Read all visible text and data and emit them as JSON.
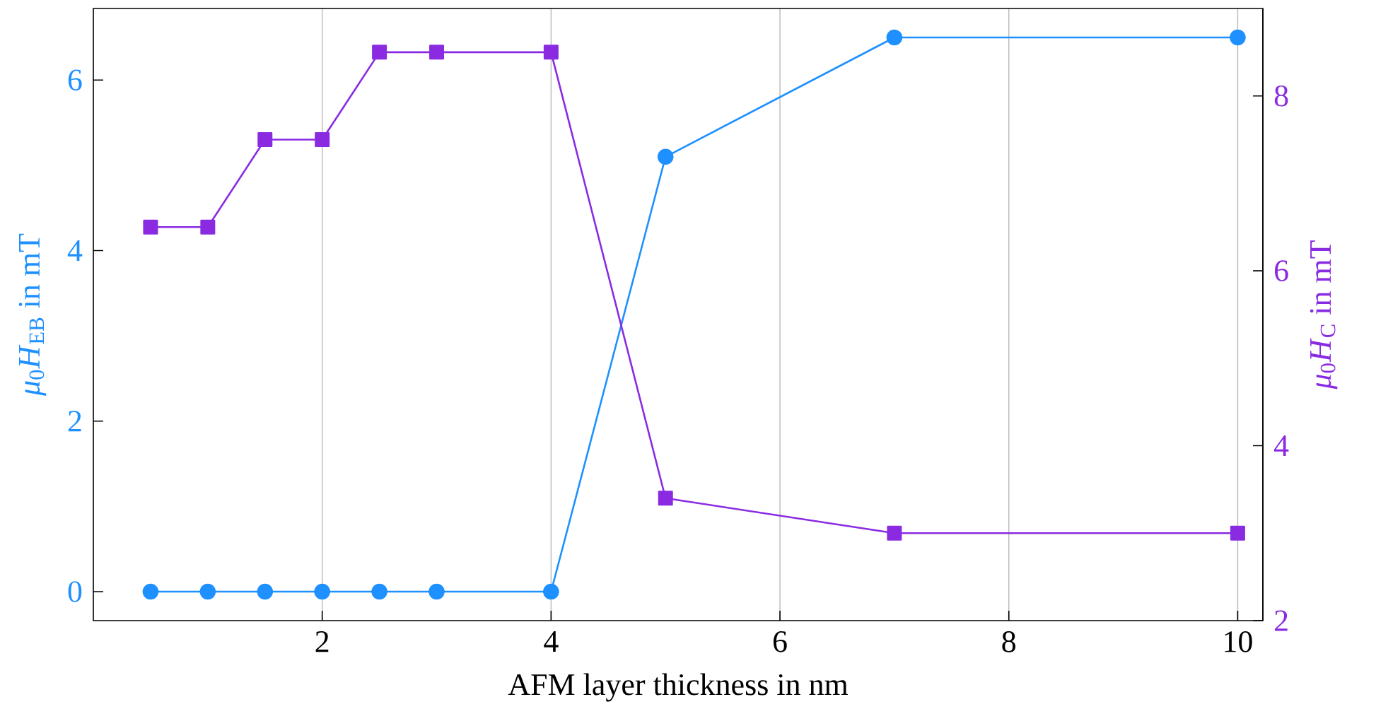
{
  "chart_data": {
    "type": "line",
    "xlabel": "AFM layer thickness in nm",
    "ylabel": "*μ*$_{0}$*H*$_{EB}$ in mT",
    "y2label": "*μ*$_{0}$*H*$_{C}$ in mT",
    "x": [
      0.5,
      1,
      1.5,
      2,
      2.5,
      3,
      4,
      5,
      7,
      10
    ],
    "xlim": [
      0,
      10.22
    ],
    "xticks": [
      2,
      4,
      6,
      8,
      10
    ],
    "ylim": [
      -0.34,
      6.84
    ],
    "yticks": [
      0,
      2,
      4,
      6
    ],
    "y2lim": [
      2,
      9
    ],
    "y2ticks": [
      2,
      4,
      6,
      8
    ],
    "grid": "x",
    "series": [
      {
        "color": "#1e90ff",
        "marker": "circle",
        "values": [
          0,
          0,
          0,
          0,
          0,
          0,
          0,
          5.1,
          6.5,
          6.5
        ]
      },
      {
        "color": "#8a2be2",
        "marker": "square",
        "axis": "y2",
        "values": [
          6.5,
          6.5,
          7.5,
          7.5,
          8.5,
          8.5,
          8.5,
          3.4,
          3.0,
          3.0
        ]
      }
    ]
  }
}
